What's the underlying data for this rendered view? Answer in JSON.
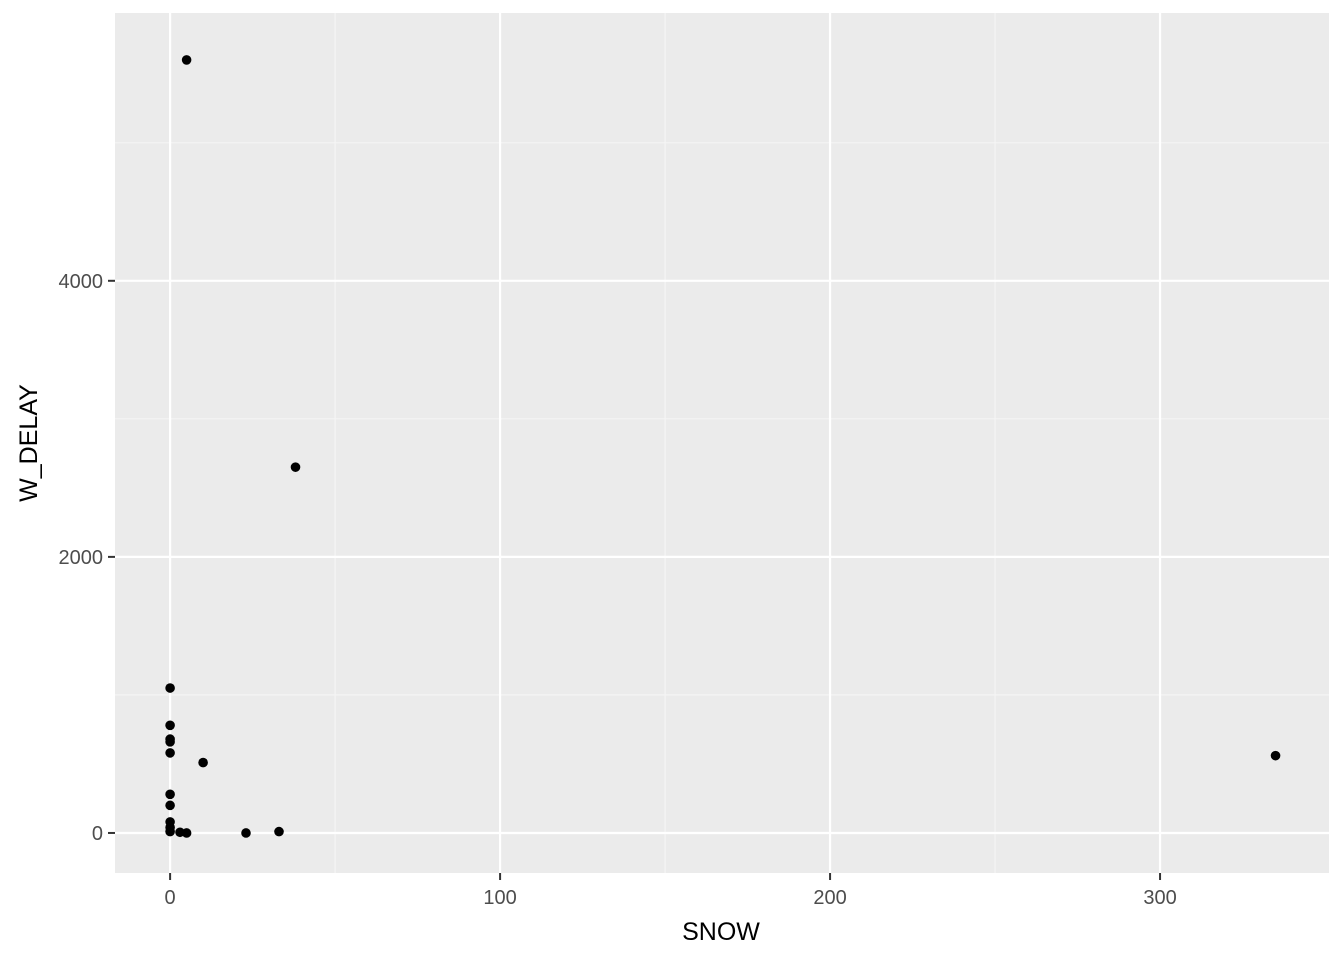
{
  "chart_data": {
    "type": "scatter",
    "title": "",
    "xlabel": "SNOW",
    "ylabel": "W_DELAY",
    "xlim": [
      -16.7,
      351.2
    ],
    "ylim": [
      -290,
      5940
    ],
    "x_ticks": [
      0,
      100,
      200,
      300
    ],
    "x_tick_labels": [
      "0",
      "100",
      "200",
      "300"
    ],
    "y_ticks": [
      0,
      2000,
      4000
    ],
    "y_tick_labels": [
      "0",
      "2000",
      "4000"
    ],
    "x_minor": [
      50,
      150,
      250
    ],
    "y_minor": [
      1000,
      3000,
      5000
    ],
    "grid": true,
    "legend": "none",
    "points": [
      {
        "x": 5,
        "y": 5600
      },
      {
        "x": 38,
        "y": 2650
      },
      {
        "x": 0,
        "y": 1050
      },
      {
        "x": 0,
        "y": 780
      },
      {
        "x": 0,
        "y": 680
      },
      {
        "x": 0,
        "y": 660
      },
      {
        "x": 0,
        "y": 580
      },
      {
        "x": 10,
        "y": 510
      },
      {
        "x": 0,
        "y": 280
      },
      {
        "x": 0,
        "y": 200
      },
      {
        "x": 0,
        "y": 80
      },
      {
        "x": 0,
        "y": 40
      },
      {
        "x": 0,
        "y": 10
      },
      {
        "x": 3,
        "y": 5
      },
      {
        "x": 5,
        "y": 0
      },
      {
        "x": 23,
        "y": 0
      },
      {
        "x": 33,
        "y": 10
      },
      {
        "x": 335,
        "y": 560
      }
    ]
  },
  "colors": {
    "panel_bg": "#ebebeb",
    "grid_major": "#ffffff",
    "grid_minor": "#f5f5f5",
    "point": "#000000",
    "tick_text": "#4d4d4d",
    "axis_title": "#000000"
  }
}
